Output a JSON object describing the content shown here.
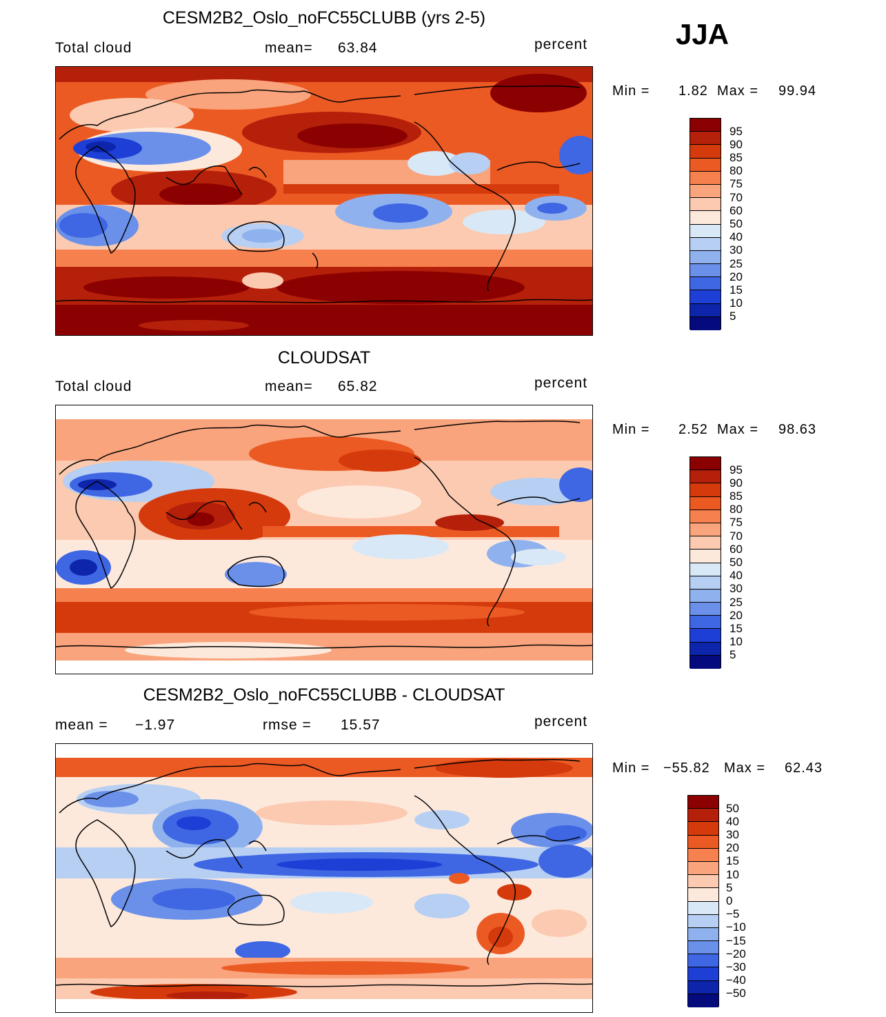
{
  "season": "JJA",
  "panels": [
    {
      "id": "model",
      "title": "CESM2B2_Oslo_noFC55CLUBB (yrs 2-5)",
      "left_label": "Total cloud",
      "center_label": "mean=",
      "center_value": "63.84",
      "units": "percent",
      "min_label": "Min =",
      "min_value": "1.82",
      "max_label": "Max =",
      "max_value": "99.94",
      "colorbar_labels": [
        "95",
        "90",
        "85",
        "80",
        "75",
        "70",
        "60",
        "50",
        "40",
        "30",
        "25",
        "20",
        "15",
        "10",
        "5"
      ],
      "colorbar_colors": [
        "#8b0000",
        "#b5200a",
        "#d53a0c",
        "#ec5a24",
        "#f6814f",
        "#f9a47c",
        "#fbcab0",
        "#fde9dc",
        "#d9e8f7",
        "#b6cff3",
        "#8fb2ee",
        "#6a90ea",
        "#3f66e3",
        "#1d3fd6",
        "#0c25ab",
        "#050a7c"
      ]
    },
    {
      "id": "obs",
      "title": "CLOUDSAT",
      "left_label": "Total cloud",
      "center_label": "mean=",
      "center_value": "65.82",
      "units": "percent",
      "min_label": "Min =",
      "min_value": "2.52",
      "max_label": "Max =",
      "max_value": "98.63",
      "colorbar_labels": [
        "95",
        "90",
        "85",
        "80",
        "75",
        "70",
        "60",
        "50",
        "40",
        "30",
        "25",
        "20",
        "15",
        "10",
        "5"
      ],
      "colorbar_colors": [
        "#8b0000",
        "#b5200a",
        "#d53a0c",
        "#ec5a24",
        "#f6814f",
        "#f9a47c",
        "#fbcab0",
        "#fde9dc",
        "#d9e8f7",
        "#b6cff3",
        "#8fb2ee",
        "#6a90ea",
        "#3f66e3",
        "#1d3fd6",
        "#0c25ab",
        "#050a7c"
      ]
    },
    {
      "id": "diff",
      "title": "CESM2B2_Oslo_noFC55CLUBB - CLOUDSAT",
      "left_label": "mean =",
      "left_value": "−1.97",
      "center_label": "rmse =",
      "center_value": "15.57",
      "units": "percent",
      "min_label": "Min =",
      "min_value": "−55.82",
      "max_label": "Max =",
      "max_value": "62.43",
      "colorbar_labels": [
        "50",
        "40",
        "30",
        "20",
        "15",
        "10",
        "5",
        "0",
        "−5",
        "−10",
        "−15",
        "−20",
        "−30",
        "−40",
        "−50"
      ],
      "colorbar_colors": [
        "#8b0000",
        "#b5200a",
        "#d53a0c",
        "#ec5a24",
        "#f6814f",
        "#f9a47c",
        "#fbcab0",
        "#fde9dc",
        "#d9e8f7",
        "#b6cff3",
        "#8fb2ee",
        "#6a90ea",
        "#3f66e3",
        "#1d3fd6",
        "#0c25ab",
        "#050a7c"
      ]
    }
  ]
}
